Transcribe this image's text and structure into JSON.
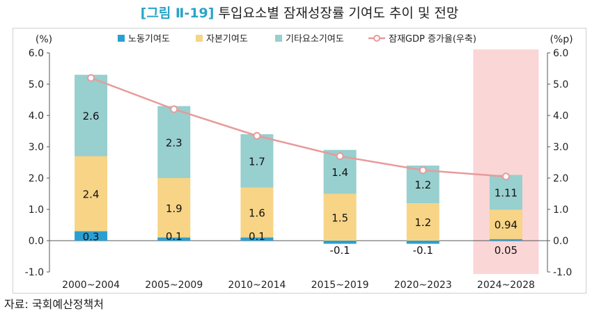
{
  "title": {
    "figure_label": "[그림 Ⅱ-19]",
    "text": "투입요소별 잠재성장률 기여도 추이 및 전망"
  },
  "source": "자료: 국회예산정책처",
  "chart_data": {
    "type": "bar",
    "stacked": true,
    "categories": [
      "2000~2004",
      "2005~2009",
      "2010~2014",
      "2015~2019",
      "2020~2023",
      "2024~2028"
    ],
    "series": [
      {
        "name": "노동기여도",
        "color": "#2b9fd1",
        "values": [
          0.3,
          0.1,
          0.1,
          -0.1,
          -0.1,
          0.05
        ],
        "labels": [
          "0.3",
          "0.1",
          "0.1",
          "-0.1",
          "-0.1",
          "0.05"
        ]
      },
      {
        "name": "자본기여도",
        "color": "#f7d486",
        "values": [
          2.4,
          1.9,
          1.6,
          1.5,
          1.2,
          0.94
        ],
        "labels": [
          "2.4",
          "1.9",
          "1.6",
          "1.5",
          "1.2",
          "0.94"
        ]
      },
      {
        "name": "기타요소기여도",
        "color": "#98cfcf",
        "values": [
          2.6,
          2.3,
          1.7,
          1.4,
          1.2,
          1.11
        ],
        "labels": [
          "2.6",
          "2.3",
          "1.7",
          "1.4",
          "1.2",
          "1.11"
        ]
      }
    ],
    "line": {
      "name": "잠재GDP 증가율(우축)",
      "color": "#e89a9a",
      "values": [
        5.2,
        4.2,
        3.35,
        2.7,
        2.25,
        2.05
      ],
      "axis": "right"
    },
    "highlight_category": "2024~2028",
    "highlight_color": "#fbd6d6",
    "y_left": {
      "label": "(%)",
      "range": [
        -1.0,
        6.0
      ],
      "ticks": [
        "6.0",
        "5.0",
        "4.0",
        "3.0",
        "2.0",
        "1.0",
        "0.0",
        "-1.0"
      ]
    },
    "y_right": {
      "label": "(%p)",
      "range": [
        -1.0,
        6.0
      ],
      "ticks": [
        "6.0",
        "5.0",
        "4.0",
        "3.0",
        "2.0",
        "1.0",
        "0.0",
        "-1.0"
      ]
    }
  }
}
